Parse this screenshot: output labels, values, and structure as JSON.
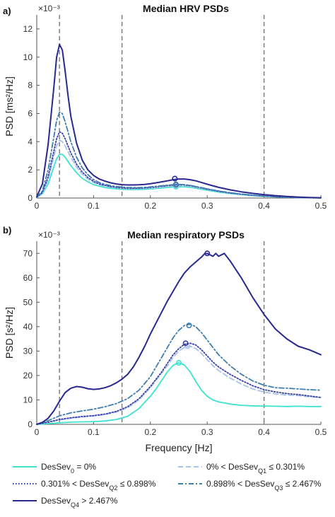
{
  "chart_data": [
    {
      "type": "line",
      "panel_label": "a)",
      "title": "Median HRV PSDs",
      "xlabel": "",
      "ylabel": "PSD [ms²/Hz]",
      "exponent": "×10⁻³",
      "xlim": [
        0,
        0.5
      ],
      "ylim": [
        0,
        13
      ],
      "xticks": [
        0,
        0.1,
        0.2,
        0.3,
        0.4,
        0.5
      ],
      "yticks": [
        0,
        2,
        4,
        6,
        8,
        10,
        12
      ],
      "vlines": [
        0.04,
        0.15,
        0.4
      ],
      "grid": false,
      "series": [
        {
          "name": "DesSev0 = 0%",
          "color": "#3de3cf",
          "style": "solid",
          "x": [
            0,
            0.01,
            0.02,
            0.03,
            0.035,
            0.04,
            0.045,
            0.05,
            0.055,
            0.06,
            0.07,
            0.08,
            0.09,
            0.1,
            0.11,
            0.12,
            0.13,
            0.14,
            0.15,
            0.16,
            0.17,
            0.18,
            0.19,
            0.2,
            0.21,
            0.22,
            0.23,
            0.24,
            0.25,
            0.26,
            0.27,
            0.28,
            0.29,
            0.3,
            0.32,
            0.34,
            0.36,
            0.38,
            0.4,
            0.42,
            0.44,
            0.46,
            0.48,
            0.5
          ],
          "values": [
            0.05,
            0.3,
            1.0,
            2.2,
            2.8,
            3.1,
            3.1,
            2.9,
            2.6,
            2.3,
            1.8,
            1.4,
            1.15,
            0.95,
            0.85,
            0.75,
            0.7,
            0.65,
            0.62,
            0.6,
            0.6,
            0.6,
            0.62,
            0.65,
            0.68,
            0.72,
            0.75,
            0.78,
            0.8,
            0.8,
            0.76,
            0.7,
            0.62,
            0.55,
            0.42,
            0.32,
            0.24,
            0.17,
            0.12,
            0.08,
            0.05,
            0.03,
            0.02,
            0.01
          ],
          "peak": {
            "x": 0.245,
            "y": 0.8
          }
        },
        {
          "name": "0% < DesSevQ1 ≤ 0.301%",
          "color": "#a6c4e8",
          "style": "dashed",
          "x": [
            0,
            0.01,
            0.02,
            0.03,
            0.035,
            0.04,
            0.045,
            0.05,
            0.055,
            0.06,
            0.07,
            0.08,
            0.09,
            0.1,
            0.11,
            0.12,
            0.13,
            0.14,
            0.15,
            0.16,
            0.17,
            0.18,
            0.19,
            0.2,
            0.21,
            0.22,
            0.23,
            0.24,
            0.25,
            0.26,
            0.27,
            0.28,
            0.29,
            0.3,
            0.32,
            0.34,
            0.36,
            0.38,
            0.4,
            0.42,
            0.44,
            0.46,
            0.48,
            0.5
          ],
          "values": [
            0.05,
            0.35,
            1.3,
            2.9,
            3.7,
            4.1,
            4.0,
            3.7,
            3.3,
            2.9,
            2.2,
            1.7,
            1.35,
            1.1,
            0.95,
            0.85,
            0.78,
            0.72,
            0.68,
            0.66,
            0.66,
            0.66,
            0.68,
            0.7,
            0.74,
            0.78,
            0.82,
            0.86,
            0.88,
            0.86,
            0.82,
            0.76,
            0.68,
            0.6,
            0.46,
            0.35,
            0.26,
            0.19,
            0.13,
            0.09,
            0.06,
            0.04,
            0.02,
            0.01
          ],
          "peak": {
            "x": 0.245,
            "y": 0.88
          }
        },
        {
          "name": "0.301% < DesSevQ2 ≤ 0.898%",
          "color": "#3b3fa6",
          "style": "dotted",
          "x": [
            0,
            0.01,
            0.02,
            0.03,
            0.035,
            0.04,
            0.045,
            0.05,
            0.055,
            0.06,
            0.07,
            0.08,
            0.09,
            0.1,
            0.11,
            0.12,
            0.13,
            0.14,
            0.15,
            0.16,
            0.17,
            0.18,
            0.19,
            0.2,
            0.21,
            0.22,
            0.23,
            0.24,
            0.25,
            0.26,
            0.27,
            0.28,
            0.29,
            0.3,
            0.32,
            0.34,
            0.36,
            0.38,
            0.4,
            0.42,
            0.44,
            0.46,
            0.48,
            0.5
          ],
          "values": [
            0.05,
            0.4,
            1.5,
            3.3,
            4.2,
            4.7,
            4.6,
            4.2,
            3.7,
            3.2,
            2.4,
            1.85,
            1.45,
            1.18,
            1.0,
            0.9,
            0.82,
            0.76,
            0.72,
            0.7,
            0.7,
            0.7,
            0.72,
            0.75,
            0.8,
            0.84,
            0.88,
            0.92,
            0.95,
            0.93,
            0.88,
            0.8,
            0.72,
            0.63,
            0.48,
            0.36,
            0.27,
            0.2,
            0.14,
            0.09,
            0.06,
            0.04,
            0.02,
            0.01
          ],
          "peak": {
            "x": 0.245,
            "y": 0.95
          }
        },
        {
          "name": "0.898% < DesSevQ3 ≤ 2.467%",
          "color": "#3f7fb0",
          "style": "dashdot",
          "x": [
            0,
            0.01,
            0.02,
            0.03,
            0.035,
            0.04,
            0.045,
            0.05,
            0.055,
            0.06,
            0.07,
            0.08,
            0.09,
            0.1,
            0.11,
            0.12,
            0.13,
            0.14,
            0.15,
            0.16,
            0.17,
            0.18,
            0.19,
            0.2,
            0.21,
            0.22,
            0.23,
            0.24,
            0.25,
            0.26,
            0.27,
            0.28,
            0.29,
            0.3,
            0.32,
            0.34,
            0.36,
            0.38,
            0.4,
            0.42,
            0.44,
            0.46,
            0.48,
            0.5
          ],
          "values": [
            0.05,
            0.5,
            2.0,
            4.3,
            5.5,
            6.1,
            6.0,
            5.4,
            4.7,
            4.0,
            2.9,
            2.15,
            1.65,
            1.3,
            1.1,
            0.97,
            0.88,
            0.82,
            0.78,
            0.75,
            0.74,
            0.74,
            0.76,
            0.79,
            0.83,
            0.87,
            0.91,
            0.95,
            0.97,
            0.95,
            0.9,
            0.82,
            0.74,
            0.65,
            0.5,
            0.38,
            0.28,
            0.2,
            0.14,
            0.09,
            0.06,
            0.04,
            0.02,
            0.01
          ],
          "peak": {
            "x": 0.245,
            "y": 0.97
          }
        },
        {
          "name": "DesSevQ4 > 2.467%",
          "color": "#28288f",
          "style": "solid",
          "x": [
            0,
            0.01,
            0.02,
            0.03,
            0.035,
            0.04,
            0.045,
            0.05,
            0.055,
            0.06,
            0.07,
            0.08,
            0.09,
            0.1,
            0.11,
            0.12,
            0.13,
            0.14,
            0.15,
            0.16,
            0.17,
            0.18,
            0.19,
            0.2,
            0.21,
            0.22,
            0.23,
            0.24,
            0.25,
            0.26,
            0.27,
            0.28,
            0.29,
            0.3,
            0.32,
            0.34,
            0.36,
            0.38,
            0.4,
            0.42,
            0.44,
            0.46,
            0.48,
            0.5
          ],
          "values": [
            0.1,
            1.0,
            3.8,
            7.8,
            10.0,
            10.9,
            10.5,
            9.0,
            7.3,
            5.8,
            3.9,
            2.7,
            2.0,
            1.6,
            1.35,
            1.2,
            1.08,
            1.0,
            0.95,
            0.93,
            0.93,
            0.94,
            0.97,
            1.02,
            1.08,
            1.15,
            1.22,
            1.3,
            1.35,
            1.35,
            1.3,
            1.22,
            1.1,
            0.98,
            0.76,
            0.58,
            0.44,
            0.33,
            0.24,
            0.17,
            0.11,
            0.07,
            0.04,
            0.02
          ],
          "peak": {
            "x": 0.243,
            "y": 1.38
          }
        }
      ]
    },
    {
      "type": "line",
      "panel_label": "b)",
      "title": "Median respiratory PSDs",
      "xlabel": "Frequency [Hz]",
      "ylabel": "PSD [s²/Hz]",
      "exponent": "×10⁻³",
      "xlim": [
        0,
        0.5
      ],
      "ylim": [
        0,
        75
      ],
      "xticks": [
        0,
        0.1,
        0.2,
        0.3,
        0.4,
        0.5
      ],
      "yticks": [
        0,
        10,
        20,
        30,
        40,
        50,
        60,
        70
      ],
      "vlines": [
        0.04,
        0.15,
        0.4
      ],
      "grid": false,
      "series": [
        {
          "name": "DesSev0 = 0%",
          "color": "#3de3cf",
          "style": "solid",
          "x": [
            0,
            0.02,
            0.04,
            0.06,
            0.08,
            0.1,
            0.12,
            0.14,
            0.16,
            0.18,
            0.2,
            0.21,
            0.22,
            0.23,
            0.24,
            0.25,
            0.26,
            0.27,
            0.28,
            0.29,
            0.3,
            0.31,
            0.32,
            0.34,
            0.36,
            0.38,
            0.4,
            0.42,
            0.44,
            0.46,
            0.48,
            0.5
          ],
          "values": [
            0,
            0.3,
            0.6,
            0.9,
            1.0,
            1.1,
            1.4,
            2.0,
            3.3,
            6.5,
            11.5,
            14.5,
            18.0,
            21.5,
            24.2,
            25.2,
            24.3,
            21.5,
            17.5,
            14.0,
            11.5,
            10.0,
            9.2,
            8.3,
            7.8,
            7.6,
            7.5,
            7.4,
            7.3,
            7.4,
            7.3,
            7.3
          ],
          "peak": {
            "x": 0.25,
            "y": 25.2
          }
        },
        {
          "name": "0% < DesSevQ1 ≤ 0.301%",
          "color": "#a6c4e8",
          "style": "dashed",
          "x": [
            0,
            0.02,
            0.04,
            0.06,
            0.08,
            0.1,
            0.12,
            0.14,
            0.16,
            0.18,
            0.2,
            0.21,
            0.22,
            0.23,
            0.24,
            0.25,
            0.26,
            0.27,
            0.28,
            0.29,
            0.3,
            0.31,
            0.32,
            0.34,
            0.36,
            0.38,
            0.4,
            0.42,
            0.44,
            0.46,
            0.48,
            0.5
          ],
          "values": [
            0,
            0.8,
            1.8,
            2.5,
            3.0,
            3.4,
            4.0,
            5.0,
            6.8,
            10.0,
            15.0,
            18.0,
            21.0,
            24.0,
            27.5,
            30.0,
            31.5,
            32.0,
            31.0,
            29.0,
            26.5,
            24.0,
            22.0,
            19.0,
            16.5,
            14.5,
            13.2,
            12.5,
            12.0,
            11.8,
            11.3,
            11.0
          ],
          "peak": {
            "x": 0.265,
            "y": 32.0
          }
        },
        {
          "name": "0.301% < DesSevQ2 ≤ 0.898%",
          "color": "#3b3fa6",
          "style": "dotted",
          "x": [
            0,
            0.02,
            0.04,
            0.06,
            0.08,
            0.1,
            0.12,
            0.14,
            0.16,
            0.18,
            0.2,
            0.21,
            0.22,
            0.23,
            0.24,
            0.25,
            0.26,
            0.27,
            0.28,
            0.29,
            0.3,
            0.31,
            0.32,
            0.34,
            0.36,
            0.38,
            0.4,
            0.42,
            0.44,
            0.46,
            0.48,
            0.5
          ],
          "values": [
            0,
            0.9,
            2.0,
            2.7,
            3.2,
            3.6,
            4.2,
            5.3,
            7.2,
            10.5,
            15.5,
            18.5,
            21.5,
            25.0,
            28.5,
            31.0,
            32.8,
            33.2,
            32.5,
            30.5,
            28.0,
            25.5,
            23.5,
            20.5,
            18.0,
            15.8,
            14.2,
            13.3,
            12.6,
            12.2,
            11.6,
            11.0
          ],
          "peak": {
            "x": 0.262,
            "y": 33.2
          }
        },
        {
          "name": "0.898% < DesSevQ3 ≤ 2.467%",
          "color": "#3f7fb0",
          "style": "dashdot",
          "x": [
            0,
            0.02,
            0.04,
            0.06,
            0.08,
            0.1,
            0.12,
            0.14,
            0.16,
            0.18,
            0.2,
            0.21,
            0.22,
            0.23,
            0.24,
            0.25,
            0.26,
            0.27,
            0.28,
            0.29,
            0.3,
            0.31,
            0.32,
            0.34,
            0.36,
            0.38,
            0.4,
            0.42,
            0.44,
            0.46,
            0.48,
            0.5
          ],
          "values": [
            0,
            1.5,
            3.5,
            4.7,
            5.5,
            6.2,
            7.2,
            8.5,
            10.5,
            14.0,
            19.5,
            23.5,
            27.5,
            31.5,
            35.5,
            38.5,
            40.5,
            41.0,
            40.0,
            37.5,
            34.5,
            31.5,
            28.5,
            24.0,
            20.5,
            17.8,
            16.0,
            15.0,
            14.8,
            14.5,
            14.2,
            14.0
          ],
          "peak": {
            "x": 0.268,
            "y": 40.5
          }
        },
        {
          "name": "DesSevQ4 > 2.467%",
          "color": "#28288f",
          "style": "solid",
          "x": [
            0,
            0.01,
            0.02,
            0.03,
            0.04,
            0.05,
            0.06,
            0.07,
            0.08,
            0.09,
            0.1,
            0.11,
            0.12,
            0.13,
            0.14,
            0.15,
            0.16,
            0.17,
            0.18,
            0.19,
            0.2,
            0.21,
            0.22,
            0.23,
            0.24,
            0.25,
            0.26,
            0.27,
            0.28,
            0.29,
            0.295,
            0.3,
            0.31,
            0.315,
            0.32,
            0.33,
            0.34,
            0.36,
            0.38,
            0.4,
            0.42,
            0.44,
            0.46,
            0.48,
            0.5
          ],
          "values": [
            0,
            0.8,
            2.5,
            5.5,
            9.5,
            13.0,
            14.8,
            15.5,
            15.2,
            14.6,
            14.3,
            14.5,
            15.0,
            15.8,
            17.0,
            18.5,
            20.5,
            23.5,
            27.5,
            32.0,
            37.0,
            41.5,
            46.0,
            50.5,
            54.5,
            58.5,
            62.0,
            64.5,
            66.5,
            68.5,
            69.8,
            70.0,
            68.8,
            70.0,
            68.8,
            70.0,
            67.0,
            60.0,
            52.0,
            45.0,
            39.0,
            35.0,
            32.0,
            30.5,
            28.5
          ],
          "peak": {
            "x": 0.3,
            "y": 70.0
          }
        }
      ]
    }
  ],
  "legend": [
    {
      "base": "DesSev",
      "sub": "0",
      "suffix": " = 0%",
      "prefix": "",
      "color": "#3de3cf",
      "style": "solid"
    },
    {
      "base": "DesSev",
      "sub": "Q1",
      "suffix": " ≤ 0.301%",
      "prefix": "0% < ",
      "color": "#a6c4e8",
      "style": "dashed"
    },
    {
      "base": "DesSev",
      "sub": "Q2",
      "suffix": " ≤ 0.898%",
      "prefix": "0.301% < ",
      "color": "#3b3fa6",
      "style": "dotted"
    },
    {
      "base": "DesSev",
      "sub": "Q3",
      "suffix": " ≤ 2.467%",
      "prefix": "0.898% < ",
      "color": "#3f7fb0",
      "style": "dashdot"
    },
    {
      "base": "DesSev",
      "sub": "Q4",
      "suffix": " > 2.467%",
      "prefix": "",
      "color": "#28288f",
      "style": "solid"
    }
  ]
}
